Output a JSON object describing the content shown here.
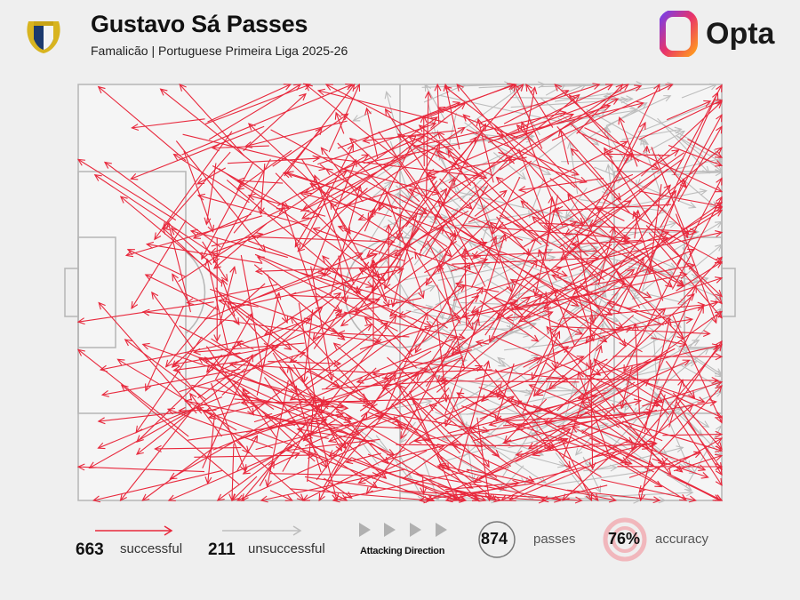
{
  "header": {
    "title": "Gustavo Sá Passes",
    "subtitle": "Famalicão | Portuguese Primeira Liga 2025-26",
    "brand": "Opta",
    "crest": "famalicao-crest"
  },
  "legend": {
    "successful_count": "663",
    "successful_label": "successful",
    "unsuccessful_count": "211",
    "unsuccessful_label": "unsuccessful",
    "direction_label": "Attacking Direction",
    "passes_count": "874",
    "passes_label": "passes",
    "accuracy_value": "76%",
    "accuracy_label": "accuracy"
  },
  "colors": {
    "successful": "#e8283c",
    "unsuccessful": "#bdbdbd",
    "pitch_lines": "#b5b5b5",
    "background": "#efefef"
  },
  "chart_data": {
    "type": "pass-map",
    "attacking_direction": "left-to-right",
    "series": [
      {
        "name": "successful",
        "count": 663,
        "color": "#e8283c"
      },
      {
        "name": "unsuccessful",
        "count": 211,
        "color": "#bdbdbd"
      }
    ],
    "total_passes": 874,
    "accuracy_percent": 76
  }
}
